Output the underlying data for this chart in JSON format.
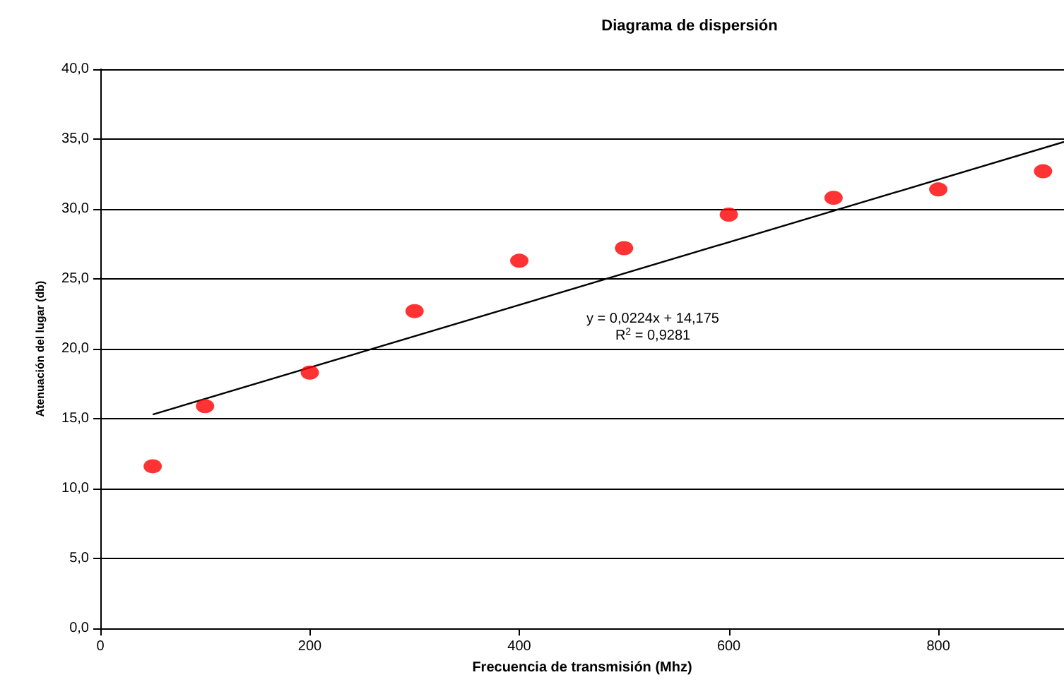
{
  "chart_data": {
    "type": "scatter",
    "title": "Diagrama de dispersión",
    "xlabel": "Frecuencia de transmisión (Mhz)",
    "ylabel": "Atenuación del lugar (db)",
    "series": [
      {
        "color": "#ff0000",
        "marker": "circle",
        "x": [
          50,
          100,
          200,
          300,
          400,
          500,
          600,
          700,
          800,
          900
        ],
        "values": [
          11.6,
          15.9,
          18.3,
          22.7,
          26.3,
          27.2,
          29.6,
          30.8,
          31.4,
          32.7
        ]
      },
      {
        "type": "line",
        "color": "#000000",
        "marker": "none",
        "line_style": "solid",
        "x": [
          50,
          920
        ],
        "values": [
          15.3,
          34.8
        ]
      }
    ],
    "annotations": [
      "y = 0,0224x + 14,175",
      "R$^{2}$ = 0,9281"
    ],
    "xlim": [
      0,
      920
    ],
    "xticks": [
      0,
      200,
      400,
      600,
      800
    ],
    "ylim": [
      0,
      40
    ],
    "yticks": [
      {
        "value": 0,
        "label": "0,0"
      },
      {
        "value": 5,
        "label": "5,0"
      },
      {
        "value": 10,
        "label": "10,0"
      },
      {
        "value": 15,
        "label": "15,0"
      },
      {
        "value": 20,
        "label": "20,0"
      },
      {
        "value": 25,
        "label": "25,0"
      },
      {
        "value": 30,
        "label": "30,0"
      },
      {
        "value": 35,
        "label": "35,0"
      },
      {
        "value": 40,
        "label": "40,0"
      }
    ],
    "grid": "y"
  }
}
